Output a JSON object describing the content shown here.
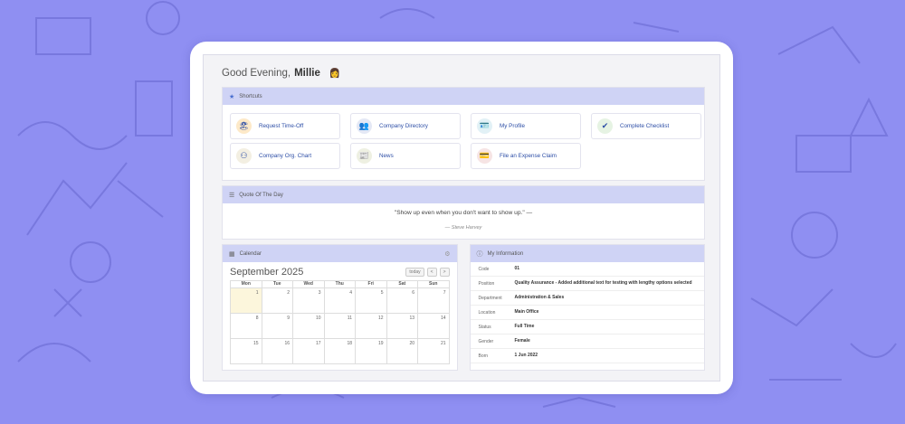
{
  "greeting": {
    "prefix": "Good Evening,",
    "name": "Millie"
  },
  "shortcuts": {
    "title": "Shortcuts",
    "items": [
      {
        "label": "Request Time-Off"
      },
      {
        "label": "Company Directory"
      },
      {
        "label": "My Profile"
      },
      {
        "label": "Complete Checklist"
      },
      {
        "label": "Company Org. Chart"
      },
      {
        "label": "News"
      },
      {
        "label": "File an Expense Claim"
      }
    ]
  },
  "quote": {
    "title": "Quote Of The Day",
    "text": "\"Show up even when you don't want to show up.\" —",
    "author": "— Steve Harvey"
  },
  "calendar": {
    "title": "Calendar",
    "month": "September 2025",
    "today_label": "today",
    "prev": "<",
    "next": ">",
    "days": [
      "Mon",
      "Tue",
      "Wed",
      "Thu",
      "Fri",
      "Sat",
      "Sun"
    ],
    "dates": [
      "1",
      "2",
      "3",
      "4",
      "5",
      "6",
      "7",
      "8",
      "9",
      "10",
      "11",
      "12",
      "13",
      "14",
      "15",
      "16",
      "17",
      "18",
      "19",
      "20",
      "21"
    ]
  },
  "info": {
    "title": "My Information",
    "rows": [
      {
        "k": "Code",
        "v": "01"
      },
      {
        "k": "Position",
        "v": "Quality Assurance - Added additional text for testing with lengthy options selected"
      },
      {
        "k": "Department",
        "v": "Administration & Sales"
      },
      {
        "k": "Location",
        "v": "Main Office"
      },
      {
        "k": "Status",
        "v": "Full Time"
      },
      {
        "k": "Gender",
        "v": "Female"
      },
      {
        "k": "Born",
        "v": "1 Jun 2022"
      }
    ]
  },
  "colors": {
    "background": "#8f8ff2",
    "panel_header": "#cfd3f5",
    "link": "#2d4ea6"
  }
}
